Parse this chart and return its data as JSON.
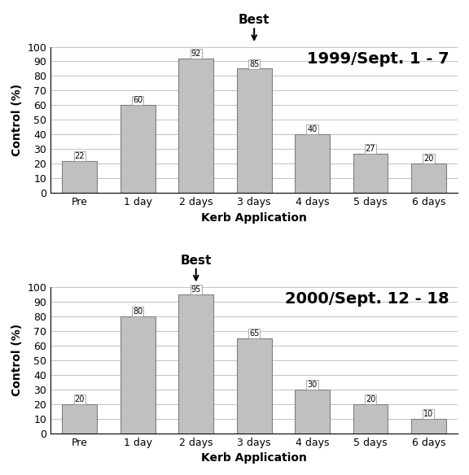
{
  "chart1": {
    "title": "1999/Sept. 1 - 7",
    "categories": [
      "Pre",
      "1 day",
      "2 days",
      "3 days",
      "4 days",
      "5 days",
      "6 days"
    ],
    "values": [
      22,
      60,
      92,
      85,
      40,
      27,
      20
    ],
    "best_index": 3,
    "best_label": "Best"
  },
  "chart2": {
    "title": "2000/Sept. 12 - 18",
    "categories": [
      "Pre",
      "1 day",
      "2 days",
      "3 days",
      "4 days",
      "5 days",
      "6 days"
    ],
    "values": [
      20,
      80,
      95,
      65,
      30,
      20,
      10
    ],
    "best_index": 2,
    "best_label": "Best"
  },
  "bar_color": "#c0c0c0",
  "bar_edgecolor": "#808080",
  "ylabel": "Control (%)",
  "xlabel": "Kerb Application",
  "ylim": [
    0,
    100
  ],
  "yticks": [
    0,
    10,
    20,
    30,
    40,
    50,
    60,
    70,
    80,
    90,
    100
  ],
  "title_fontsize": 14,
  "label_fontsize": 10,
  "tick_fontsize": 9,
  "value_fontsize": 7,
  "best_fontsize": 11
}
